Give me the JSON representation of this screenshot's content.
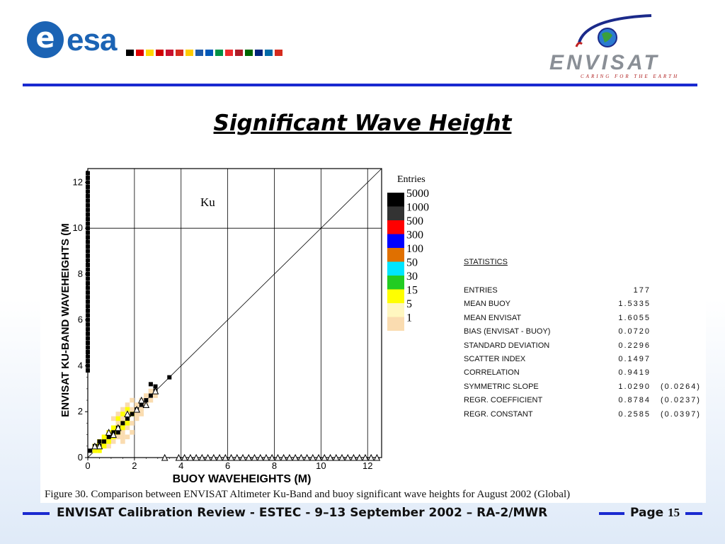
{
  "header": {
    "esa_logo": "esa",
    "esa_mark": "e",
    "envisat_logo": "ENVISAT",
    "envisat_tagline": "CARING FOR THE EARTH",
    "flag_colors": [
      "#000000",
      "#e00000",
      "#ffd700",
      "#d00000",
      "#c8102e",
      "#d52b1e",
      "#ffcc00",
      "#1e5aa8",
      "#0057b8",
      "#009246",
      "#ef2b2d",
      "#ae1c28",
      "#006600",
      "#00247d",
      "#006aa7",
      "#d52b1e"
    ]
  },
  "title": "Significant Wave Height",
  "chart_data": {
    "type": "heatmap",
    "annotation": "Ku",
    "xlabel": "BUOY  WAVEHEIGHTS (M)",
    "ylabel": "ENVISAT KU-BAND WAVEHEIGHTS (M",
    "xlim": [
      0,
      12.6
    ],
    "ylim": [
      0,
      12.6
    ],
    "xticks": [
      0,
      2,
      4,
      6,
      8,
      10,
      12
    ],
    "yticks": [
      0,
      2,
      4,
      6,
      8,
      10,
      12
    ],
    "grid_x": [
      0,
      2,
      4,
      6,
      8,
      10,
      12
    ],
    "grid_y": [
      10
    ],
    "diagonal": true,
    "legend_title": "Entries",
    "legend": [
      {
        "label": "5000",
        "color": "#000000"
      },
      {
        "label": "1000",
        "color": "#333333"
      },
      {
        "label": "500",
        "color": "#ff0000"
      },
      {
        "label": "300",
        "color": "#0000ff"
      },
      {
        "label": "100",
        "color": "#e07000"
      },
      {
        "label": "50",
        "color": "#00e5ff"
      },
      {
        "label": "30",
        "color": "#22cc22"
      },
      {
        "label": "15",
        "color": "#ffff00"
      },
      {
        "label": "5",
        "color": "#fff7c0"
      },
      {
        "label": "1",
        "color": "#fadcb0"
      }
    ],
    "cells_faint": [
      [
        0.9,
        0.5
      ],
      [
        1.1,
        0.7
      ],
      [
        1.3,
        0.9
      ],
      [
        1.5,
        1.1
      ],
      [
        1.7,
        1.3
      ],
      [
        1.9,
        1.5
      ],
      [
        2.1,
        1.7
      ],
      [
        0.7,
        0.9
      ],
      [
        0.9,
        1.1
      ],
      [
        1.1,
        1.3
      ],
      [
        1.3,
        1.5
      ],
      [
        1.5,
        1.7
      ],
      [
        1.7,
        1.9
      ],
      [
        1.9,
        2.1
      ],
      [
        2.1,
        2.3
      ],
      [
        2.3,
        2.5
      ],
      [
        2.5,
        2.7
      ],
      [
        1.5,
        2.1
      ],
      [
        1.7,
        2.3
      ],
      [
        1.9,
        2.5
      ],
      [
        1.1,
        1.7
      ],
      [
        1.3,
        1.9
      ],
      [
        2.3,
        2.1
      ],
      [
        2.5,
        2.3
      ],
      [
        2.7,
        2.5
      ],
      [
        2.7,
        2.9
      ],
      [
        2.9,
        2.7
      ],
      [
        0.5,
        0.7
      ],
      [
        0.7,
        0.5
      ],
      [
        1.5,
        0.7
      ],
      [
        1.7,
        0.9
      ],
      [
        1.9,
        1.1
      ],
      [
        1.5,
        0.9
      ],
      [
        2.1,
        1.9
      ],
      [
        2.3,
        1.9
      ]
    ],
    "cells_yellow": [
      [
        0.3,
        0.3
      ],
      [
        0.5,
        0.5
      ],
      [
        0.7,
        0.7
      ],
      [
        0.9,
        0.9
      ],
      [
        1.1,
        1.1
      ],
      [
        1.3,
        1.3
      ],
      [
        1.5,
        1.5
      ],
      [
        1.7,
        1.7
      ],
      [
        1.9,
        1.9
      ],
      [
        0.5,
        0.3
      ],
      [
        0.7,
        0.5
      ],
      [
        0.9,
        0.7
      ],
      [
        1.1,
        0.9
      ],
      [
        1.3,
        1.1
      ],
      [
        1.5,
        1.3
      ],
      [
        1.7,
        1.5
      ],
      [
        0.3,
        0.5
      ],
      [
        0.5,
        0.7
      ],
      [
        0.7,
        0.9
      ],
      [
        0.9,
        1.1
      ],
      [
        1.1,
        1.3
      ],
      [
        1.3,
        1.7
      ],
      [
        1.5,
        1.9
      ],
      [
        1.7,
        2.1
      ]
    ],
    "points_square": [
      [
        0.1,
        0.3
      ],
      [
        0.3,
        0.5
      ],
      [
        0.5,
        0.5
      ],
      [
        0.7,
        0.7
      ],
      [
        0.9,
        0.9
      ],
      [
        1.1,
        1.1
      ],
      [
        1.3,
        1.3
      ],
      [
        1.5,
        1.5
      ],
      [
        1.7,
        1.7
      ],
      [
        1.9,
        1.9
      ],
      [
        2.1,
        2.1
      ],
      [
        2.3,
        2.3
      ],
      [
        2.5,
        2.5
      ],
      [
        2.7,
        2.7
      ],
      [
        2.9,
        2.9
      ],
      [
        2.9,
        3.1
      ],
      [
        2.7,
        3.2
      ],
      [
        3.5,
        3.5
      ],
      [
        0.5,
        0.7
      ],
      [
        1.3,
        1.1
      ]
    ],
    "points_triangle": [
      [
        0.5,
        0.5
      ],
      [
        0.9,
        1.1
      ],
      [
        1.1,
        1.0
      ],
      [
        1.3,
        1.3
      ],
      [
        1.7,
        1.9
      ],
      [
        2.1,
        2.1
      ],
      [
        2.3,
        2.5
      ],
      [
        2.5,
        2.3
      ],
      [
        2.9,
        2.9
      ],
      [
        0.3,
        0.5
      ]
    ],
    "column_square_ymax": 12.5,
    "column_square_ymin": 3.8,
    "bottom_triangles_xmin": 3.3,
    "bottom_triangles_xmax": 12.6
  },
  "statistics": {
    "title": "STATISTICS",
    "rows": [
      {
        "label": "ENTRIES",
        "value": "177",
        "err": ""
      },
      {
        "label": "MEAN BUOY",
        "value": "1.5335",
        "err": ""
      },
      {
        "label": "MEAN ENVISAT",
        "value": "1.6055",
        "err": ""
      },
      {
        "label": "BIAS (ENVISAT - BUOY)",
        "value": "0.0720",
        "err": ""
      },
      {
        "label": "STANDARD DEVIATION",
        "value": "0.2296",
        "err": ""
      },
      {
        "label": "SCATTER INDEX",
        "value": "0.1497",
        "err": ""
      },
      {
        "label": "CORRELATION",
        "value": "0.9419",
        "err": ""
      },
      {
        "label": "SYMMETRIC SLOPE",
        "value": "1.0290",
        "err": "(0.0264)"
      },
      {
        "label": "REGR. COEFFICIENT",
        "value": "0.8784",
        "err": "(0.0237)"
      },
      {
        "label": "REGR. CONSTANT",
        "value": "0.2585",
        "err": "(0.0397)"
      }
    ]
  },
  "caption": "Figure 30.  Comparison between ENVISAT Altimeter Ku-Band and buoy significant wave heights for August 2002 (Global)",
  "footer": {
    "text": "ENVISAT Calibration Review - ESTEC - 9–13 September 2002 – RA-2/MWR",
    "page_label": "Page",
    "page_number": "15"
  }
}
